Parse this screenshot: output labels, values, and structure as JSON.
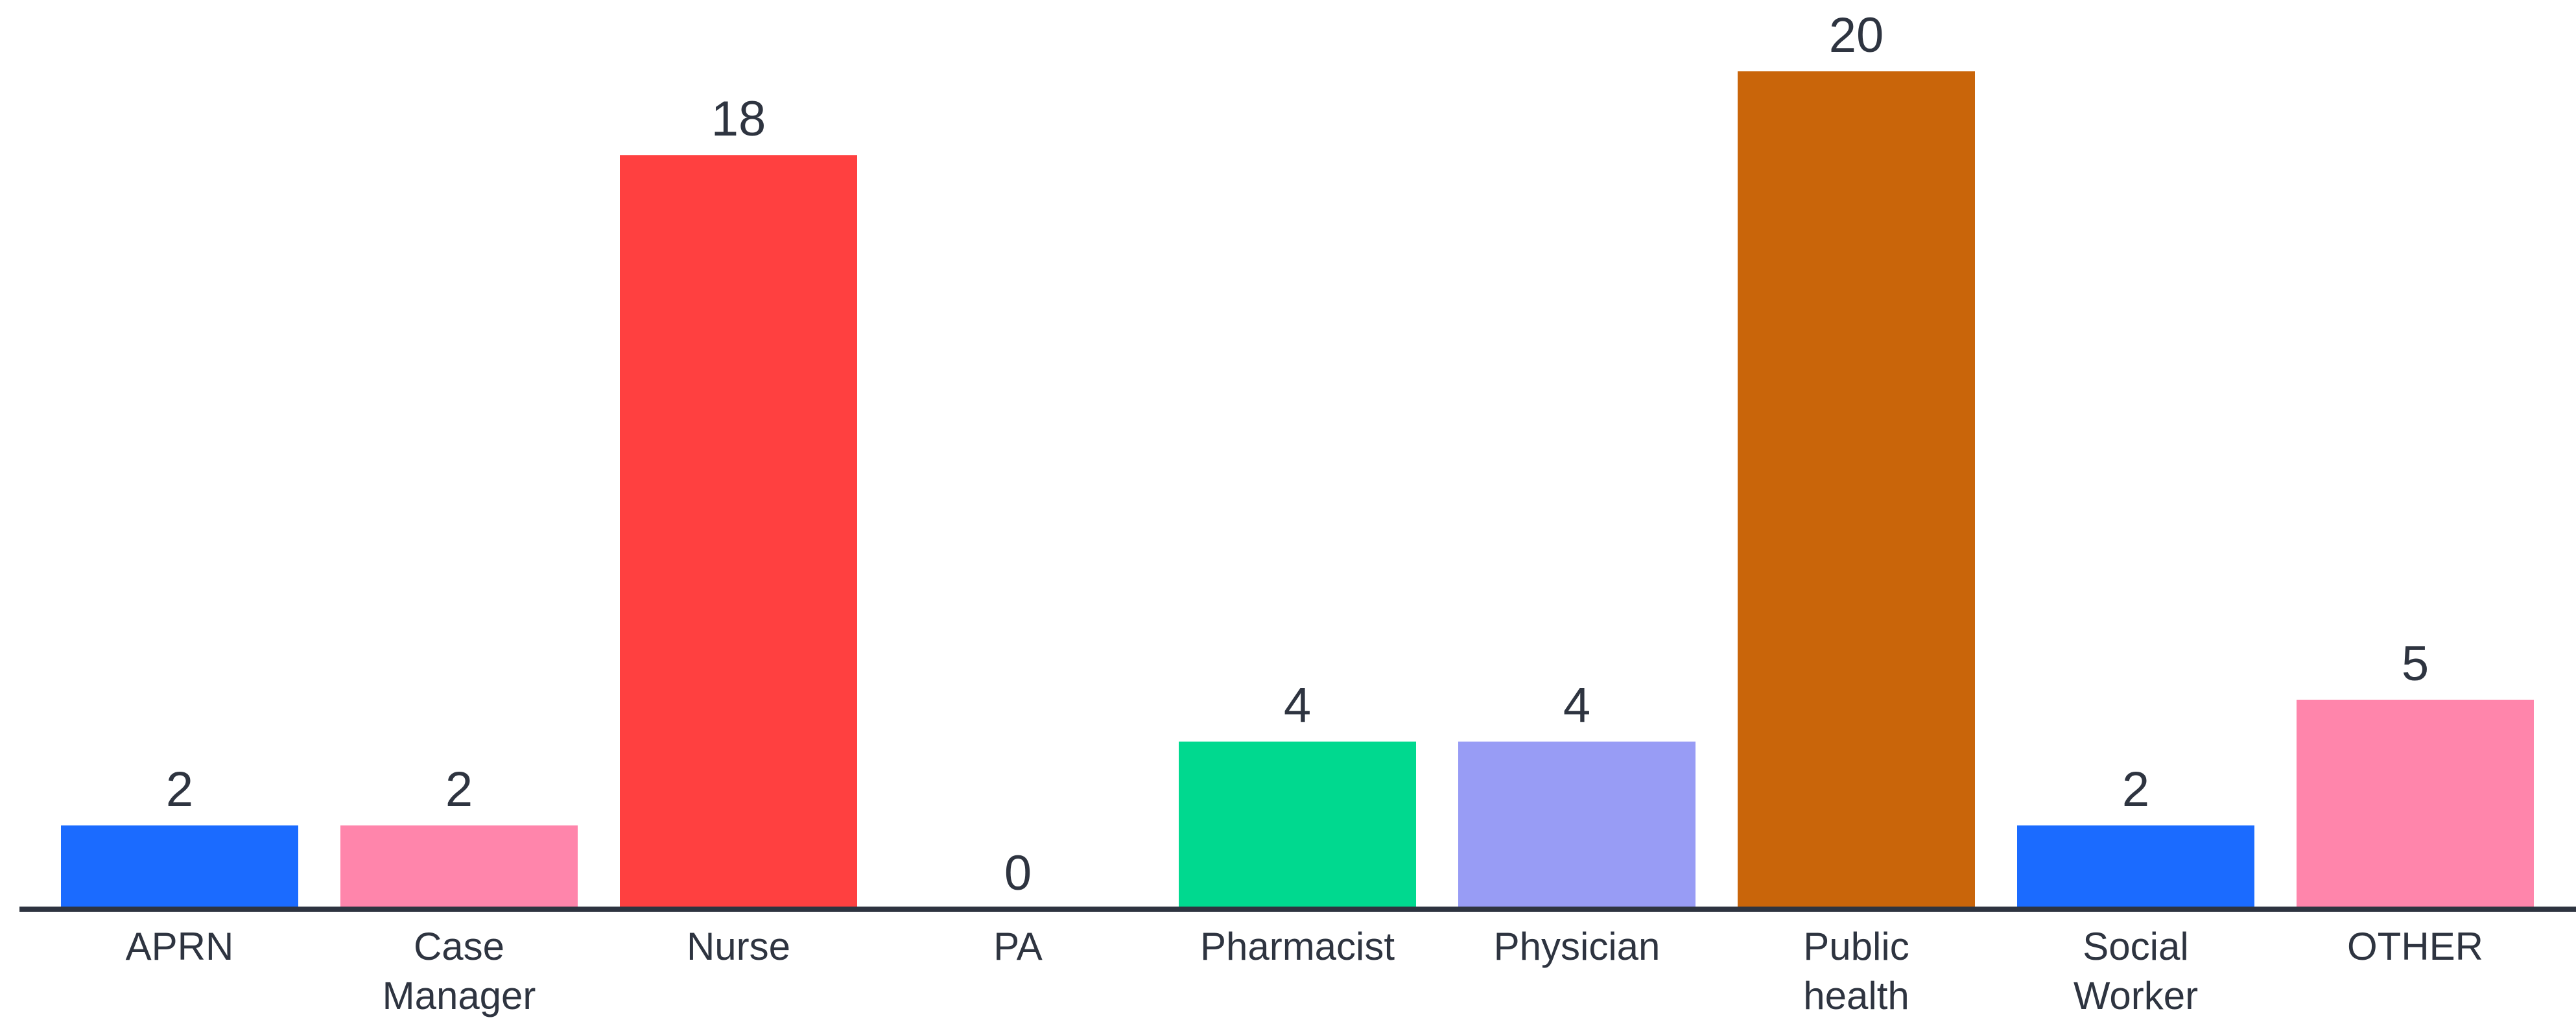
{
  "chart_data": {
    "type": "bar",
    "categories": [
      [
        "APRN"
      ],
      [
        "Case",
        "Manager"
      ],
      [
        "Nurse"
      ],
      [
        "PA"
      ],
      [
        "Pharmacist"
      ],
      [
        "Physician"
      ],
      [
        "Public",
        "health"
      ],
      [
        "Social",
        "Worker"
      ],
      [
        "OTHER"
      ]
    ],
    "values": [
      2,
      2,
      18,
      0,
      4,
      4,
      20,
      2,
      5
    ],
    "colors": [
      "#1b6bff",
      "#ff85ab",
      "#ff4040",
      "#ffffff",
      "#00d98f",
      "#989cf5",
      "#c9650a",
      "#1b6bff",
      "#ff85ab"
    ],
    "baseline_color": "#2e3440",
    "label_color": "#2e3440",
    "ylim": [
      0,
      20
    ],
    "grid": false,
    "legend": "none"
  }
}
